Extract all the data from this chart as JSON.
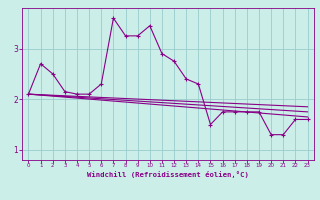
{
  "xlabel": "Windchill (Refroidissement éolien,°C)",
  "bg_color": "#cceee8",
  "line_color": "#880088",
  "grid_color": "#99cccc",
  "series": [
    [
      0,
      2.1
    ],
    [
      1,
      2.7
    ],
    [
      2,
      2.5
    ],
    [
      3,
      2.15
    ],
    [
      4,
      2.1
    ],
    [
      5,
      2.1
    ],
    [
      6,
      2.3
    ],
    [
      7,
      3.6
    ],
    [
      8,
      3.25
    ],
    [
      9,
      3.25
    ],
    [
      10,
      3.45
    ],
    [
      11,
      2.9
    ],
    [
      12,
      2.75
    ],
    [
      13,
      2.4
    ],
    [
      14,
      2.3
    ],
    [
      15,
      1.5
    ],
    [
      16,
      1.75
    ],
    [
      17,
      1.75
    ],
    [
      18,
      1.75
    ],
    [
      19,
      1.75
    ],
    [
      20,
      1.3
    ],
    [
      21,
      1.3
    ],
    [
      22,
      1.6
    ],
    [
      23,
      1.6
    ]
  ],
  "line2": [
    [
      0,
      2.1
    ],
    [
      23,
      1.85
    ]
  ],
  "line3": [
    [
      0,
      2.1
    ],
    [
      23,
      1.75
    ]
  ],
  "line4": [
    [
      0,
      2.1
    ],
    [
      23,
      1.65
    ]
  ],
  "ylim": [
    0.8,
    3.8
  ],
  "xlim": [
    -0.5,
    23.5
  ],
  "yticks": [
    1,
    2,
    3
  ],
  "xticks": [
    0,
    1,
    2,
    3,
    4,
    5,
    6,
    7,
    8,
    9,
    10,
    11,
    12,
    13,
    14,
    15,
    16,
    17,
    18,
    19,
    20,
    21,
    22,
    23
  ]
}
